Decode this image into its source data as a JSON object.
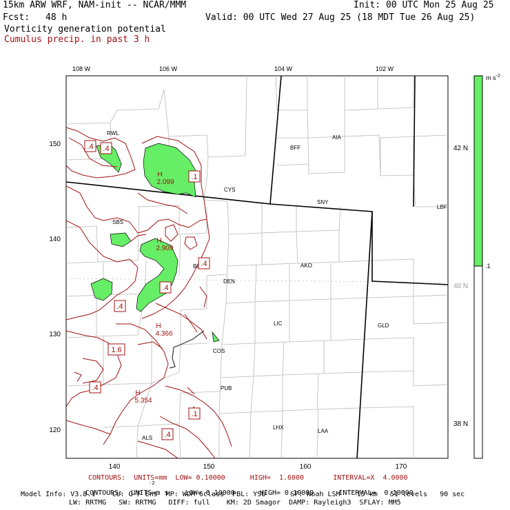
{
  "header": {
    "model_title": "15km ARW WRF, NAM-init -- NCAR/MMM",
    "init_time": "Init: 00 UTC Mon 25 Aug 25",
    "forecast_label": "Fcst:",
    "forecast_hours": "48 h",
    "valid_time": "Valid: 00 UTC Wed 27 Aug 25 (18 MDT Tue 26 Aug 25)",
    "field_1": "Vorticity generation potential",
    "field_2": "Cumulus precip. in past 3 h"
  },
  "map": {
    "top_lon_labels": [
      "108 W",
      "106 W",
      "104 W",
      "102 W"
    ],
    "bottom_grid_labels": [
      "140",
      "150",
      "160",
      "170"
    ],
    "left_grid_labels": [
      "150",
      "140",
      "130",
      "120"
    ],
    "right_lat_labels": [
      "42 N",
      "40 N",
      "38 N"
    ],
    "stations": [
      "RWL",
      "BFF",
      "AIA",
      "CYS",
      "SNY",
      "LBF",
      "SBS",
      "BOU",
      "AKO",
      "DEN",
      "LIC",
      "GLD",
      "COS",
      "PUB",
      "LHX",
      "LAA",
      "ALS"
    ],
    "contour_labels": [
      ".4",
      ".4",
      ".1",
      ".4",
      ".4",
      ".4",
      "1.6",
      ".4",
      ".1",
      ".4"
    ],
    "maxima": [
      {
        "mark": "H",
        "value": "2.099"
      },
      {
        "mark": "H",
        "value": "2.909"
      },
      {
        "mark": "H",
        "value": "4.366"
      },
      {
        "mark": "H",
        "value": "5.354"
      }
    ],
    "shade_color": "#66ee66",
    "contour_color": "#a01010"
  },
  "colorbar": {
    "unit_label": "m s",
    "unit_exp": "-2",
    "tick_label": ".1",
    "fill_color": "#66ee66"
  },
  "footer": {
    "contours_red": "CONTOURS:  UNITS=mm  LOW= 0.10000      HIGH=  1.6000       INTERVAL=X  4.0000",
    "contours_black": "CONTOURS:  UNITS=m s    LOW= 0.10000      HIGH= 0.10000      INTERVAL=  0.10000",
    "contours_black_exp": "-2",
    "model_info_1": "Model Info: V3.8.1    CU: G-F Ens  MP: WDM 6class  PBL: YSU      SF: Noah LSM    15 km   51 levels   90 sec",
    "model_info_2": "LW: RRTMG   SW: RRTMG   DIFF: full    KM: 2D Smagor  DAMP: Rayleigh3  SFLAY: MM5"
  }
}
